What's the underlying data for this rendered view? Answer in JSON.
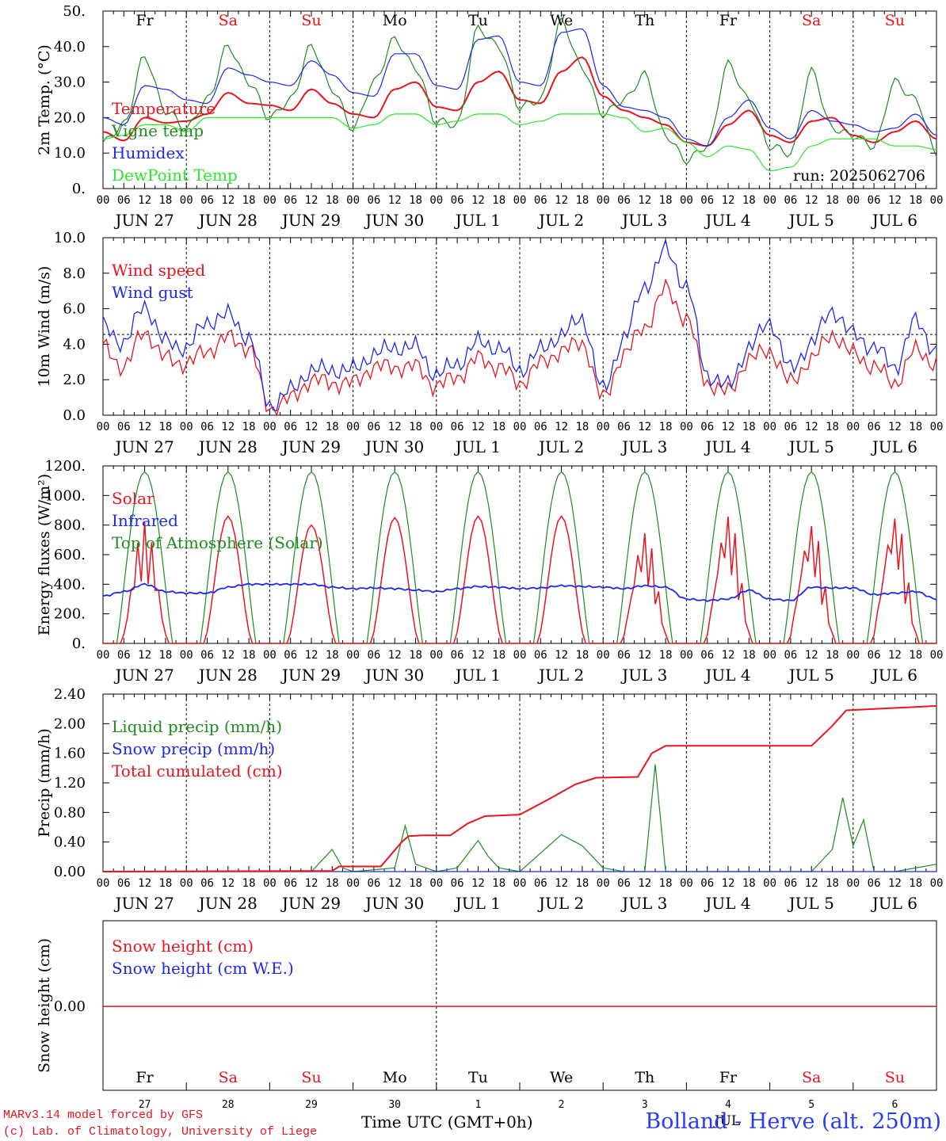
{
  "colors": {
    "temperature": "#e8141e",
    "vigne": "#1e8c1e",
    "humidex": "#1e28f0",
    "dewpoint": "#2ce82c",
    "weekday": "#000000",
    "weekend": "#e8141e",
    "station": "#2a3cf0"
  },
  "days": {
    "weekday_labels": [
      "Fr",
      "Sa",
      "Su",
      "Mo",
      "Tu",
      "We",
      "Th",
      "Fr",
      "Sa",
      "Su"
    ],
    "weekend_flags": [
      false,
      true,
      true,
      false,
      false,
      false,
      false,
      false,
      true,
      true
    ],
    "date_labels": [
      "JUN 27",
      "JUN 28",
      "JUN 29",
      "JUN 30",
      "JUL  1",
      "JUL  2",
      "JUL  3",
      "JUL  4",
      "JUL  5",
      "JUL  6"
    ],
    "day_numbers": [
      "27",
      "28",
      "29",
      "30",
      "1",
      "2",
      "3",
      "4",
      "5",
      "6"
    ],
    "hour_ticks": [
      "00",
      "06",
      "12",
      "18"
    ],
    "end_hour": "00"
  },
  "footer": {
    "credit_line1": "MARv3.14 model forced by GFS",
    "credit_line2": "(c) Lab. of Climatology, University of Liege",
    "xlabel": "Time UTC (GMT+0h)",
    "station": "Bolland - Herve (alt. 250m)",
    "month_label": "JUL"
  },
  "chart_data": [
    {
      "type": "line",
      "ylabel": "2m Temp. (°C)",
      "ylim": [
        0,
        50
      ],
      "yticks": [
        "0.",
        "10.0",
        "20.0",
        "30.0",
        "40.0",
        "50."
      ],
      "annotation": "run: 2025062706",
      "x_unit": "hours from JUN 27 00 UTC",
      "series": [
        {
          "name": "Temperature",
          "color": "#e8141e",
          "x": [
            0,
            6,
            12,
            18,
            24,
            30,
            36,
            42,
            48,
            54,
            60,
            66,
            72,
            78,
            84,
            90,
            96,
            102,
            108,
            114,
            120,
            126,
            132,
            138,
            144,
            150,
            156,
            162,
            168,
            174,
            180,
            186,
            192,
            198,
            204,
            210,
            216,
            222,
            228,
            234,
            240
          ],
          "values": [
            16,
            13.5,
            20,
            18.5,
            19,
            21,
            27,
            24,
            23.5,
            22,
            28,
            24,
            21,
            20,
            28,
            30,
            23,
            22,
            30,
            33,
            25,
            24,
            33,
            37,
            26,
            22,
            20,
            18,
            13,
            12,
            18,
            22,
            15,
            13,
            19,
            20,
            15,
            13,
            16,
            19,
            14
          ]
        },
        {
          "name": "Vigne temp",
          "color": "#1e8c1e",
          "x": [
            0,
            6,
            12,
            18,
            24,
            30,
            36,
            42,
            48,
            54,
            60,
            66,
            72,
            78,
            84,
            90,
            96,
            102,
            108,
            114,
            120,
            126,
            132,
            138,
            144,
            150,
            156,
            162,
            168,
            174,
            180,
            186,
            192,
            198,
            204,
            210,
            216,
            222,
            228,
            234,
            240
          ],
          "values": [
            13,
            18,
            37,
            22,
            17,
            25,
            40,
            30,
            20,
            25,
            40,
            28,
            17,
            30,
            42,
            34,
            19,
            18,
            45,
            40,
            23,
            25,
            47,
            34,
            21,
            25,
            32,
            15,
            8,
            12,
            35,
            25,
            12,
            10,
            33,
            17,
            15,
            12,
            30,
            25,
            10
          ]
        },
        {
          "name": "Humidex",
          "color": "#1e28f0",
          "x": [
            0,
            6,
            12,
            18,
            24,
            30,
            36,
            42,
            48,
            54,
            60,
            66,
            72,
            78,
            84,
            90,
            96,
            102,
            108,
            114,
            120,
            126,
            132,
            138,
            144,
            150,
            156,
            162,
            168,
            174,
            180,
            186,
            192,
            198,
            204,
            210,
            216,
            222,
            228,
            234,
            240
          ],
          "values": [
            20,
            18,
            29,
            28,
            25,
            24,
            34,
            32,
            30,
            29,
            36,
            32,
            27,
            26,
            38,
            38,
            29,
            28,
            42,
            43,
            30,
            29,
            44,
            45,
            29,
            23,
            22,
            20,
            14,
            12,
            20,
            25,
            17,
            14,
            22,
            19,
            18,
            16,
            17,
            21,
            15
          ]
        },
        {
          "name": "DewPoint Temp",
          "color": "#2ce82c",
          "x": [
            0,
            6,
            12,
            18,
            24,
            30,
            36,
            42,
            48,
            54,
            60,
            66,
            72,
            78,
            84,
            90,
            96,
            102,
            108,
            114,
            120,
            126,
            132,
            138,
            144,
            150,
            156,
            162,
            168,
            174,
            180,
            186,
            192,
            198,
            204,
            210,
            216,
            222,
            228,
            234,
            240
          ],
          "values": [
            14,
            15,
            18,
            18,
            16,
            20,
            20,
            20,
            20,
            20,
            20,
            20,
            17,
            18,
            21,
            21,
            18,
            19,
            21,
            21,
            18,
            19,
            21,
            21,
            21,
            20,
            16,
            17,
            13,
            9,
            12,
            11,
            5,
            6,
            12,
            14,
            14,
            14,
            12,
            12,
            11
          ]
        }
      ]
    },
    {
      "type": "line",
      "ylabel": "10m Wind (m/s)",
      "ylim": [
        0,
        11
      ],
      "yticks": [
        "0.0",
        "2.0",
        "4.0",
        "6.0",
        "8.0",
        "10.0"
      ],
      "ref_line": 5,
      "x_unit": "hours from JUN 27 00 UTC",
      "series": [
        {
          "name": "Wind speed",
          "color": "#e8141e",
          "x": [
            0,
            6,
            12,
            18,
            24,
            30,
            36,
            42,
            48,
            54,
            60,
            66,
            72,
            78,
            84,
            90,
            96,
            102,
            108,
            114,
            120,
            126,
            132,
            138,
            144,
            150,
            156,
            162,
            168,
            174,
            180,
            186,
            192,
            198,
            204,
            210,
            216,
            222,
            228,
            234,
            240
          ],
          "values": [
            4.2,
            3.0,
            5.2,
            3.5,
            3.2,
            4.0,
            4.8,
            4.2,
            0.4,
            1.0,
            2.2,
            2.0,
            2.0,
            3.0,
            3.0,
            3.0,
            1.8,
            2.4,
            3.5,
            3.0,
            2.0,
            3.2,
            4.0,
            4.5,
            1.0,
            3.8,
            5.5,
            7.8,
            6.0,
            2.0,
            1.4,
            3.5,
            4.0,
            2.0,
            3.5,
            5.0,
            3.8,
            3.0,
            2.0,
            4.0,
            3.2
          ]
        },
        {
          "name": "Wind gust",
          "color": "#1e28f0",
          "x": [
            0,
            6,
            12,
            18,
            24,
            30,
            36,
            42,
            48,
            54,
            60,
            66,
            72,
            78,
            84,
            90,
            96,
            102,
            108,
            114,
            120,
            126,
            132,
            138,
            144,
            150,
            156,
            162,
            168,
            174,
            180,
            186,
            192,
            198,
            204,
            210,
            216,
            222,
            228,
            234,
            240
          ],
          "values": [
            5.5,
            4.5,
            6.8,
            4.5,
            4.2,
            5.8,
            6.2,
            4.8,
            0.6,
            1.5,
            2.8,
            2.8,
            2.8,
            3.8,
            4.2,
            4.2,
            2.5,
            3.2,
            4.5,
            4.2,
            2.8,
            4.0,
            5.0,
            6.0,
            1.5,
            4.8,
            8.0,
            10.2,
            8.0,
            2.5,
            1.8,
            4.2,
            5.8,
            2.8,
            4.5,
            6.5,
            5.0,
            4.2,
            3.0,
            5.8,
            4.0
          ]
        }
      ]
    },
    {
      "type": "line",
      "ylabel": "Energy fluxes (W/m²)",
      "ylim": [
        0,
        1200
      ],
      "yticks": [
        "0.",
        "200.",
        "400.",
        "600.",
        "800.",
        "1000.",
        "1200."
      ],
      "x_unit": "hours from JUN 27 00 UTC",
      "solar_peaks": [
        820,
        860,
        800,
        850,
        860,
        860,
        760,
        880,
        820,
        880
      ],
      "series": [
        {
          "name": "Solar",
          "color": "#e8141e"
        },
        {
          "name": "Infrared",
          "color": "#1e28f0",
          "x": [
            0,
            6,
            12,
            18,
            24,
            30,
            36,
            42,
            48,
            54,
            60,
            66,
            72,
            78,
            84,
            90,
            96,
            102,
            108,
            114,
            120,
            126,
            132,
            138,
            144,
            150,
            156,
            162,
            168,
            174,
            180,
            186,
            192,
            198,
            204,
            210,
            216,
            222,
            228,
            234,
            240
          ],
          "values": [
            320,
            350,
            400,
            350,
            340,
            340,
            380,
            400,
            400,
            400,
            400,
            380,
            370,
            375,
            370,
            360,
            350,
            370,
            385,
            380,
            370,
            375,
            390,
            385,
            380,
            370,
            390,
            380,
            300,
            290,
            300,
            360,
            300,
            290,
            380,
            375,
            375,
            330,
            340,
            350,
            300
          ]
        },
        {
          "name": "Top of Atmosphere (Solar)",
          "color": "#1e8c1e",
          "peak": 1160
        }
      ]
    },
    {
      "type": "line",
      "ylabel": "Precip (mm/h)",
      "ylim": [
        0,
        2.4
      ],
      "yticks": [
        "0.00",
        "0.40",
        "0.80",
        "1.20",
        "1.60",
        "2.00",
        "2.40"
      ],
      "x_unit": "hours from JUN 27 00 UTC",
      "series": [
        {
          "name": "Liquid precip (mm/h)",
          "color": "#1e8c1e",
          "x": [
            0,
            60,
            66,
            69,
            72,
            84,
            87,
            90,
            96,
            102,
            108,
            111,
            114,
            120,
            132,
            138,
            141,
            144,
            150,
            156,
            159,
            162,
            204,
            210,
            213,
            216,
            219,
            222,
            228,
            240
          ],
          "values": [
            0,
            0,
            0.3,
            0.05,
            0,
            0.05,
            0.62,
            0.1,
            0,
            0.05,
            0.42,
            0.2,
            0.05,
            0,
            0.5,
            0.35,
            0.2,
            0.05,
            0,
            0,
            1.45,
            0,
            0,
            0.3,
            1.0,
            0.35,
            0.7,
            0,
            0,
            0.1
          ]
        },
        {
          "name": "Snow precip (mm/h)",
          "color": "#1e28f0",
          "x": [
            0,
            240
          ],
          "values": [
            0,
            0
          ]
        },
        {
          "name": "Total cumulated (cm)",
          "color": "#e8141e",
          "x": [
            0,
            66,
            68,
            80,
            86,
            88,
            92,
            100,
            105,
            110,
            120,
            128,
            136,
            142,
            154,
            158,
            162,
            204,
            210,
            214,
            240
          ],
          "values": [
            0,
            0.01,
            0.07,
            0.07,
            0.4,
            0.48,
            0.49,
            0.49,
            0.65,
            0.75,
            0.77,
            0.97,
            1.18,
            1.27,
            1.28,
            1.6,
            1.7,
            1.7,
            1.97,
            2.18,
            2.24
          ]
        }
      ]
    },
    {
      "type": "line",
      "ylabel": "Snow height (cm)",
      "yticks": [
        "0.00"
      ],
      "x_unit": "hours from JUN 27 00 UTC",
      "series": [
        {
          "name": "Snow height (cm)",
          "color": "#e8141e",
          "x": [
            0,
            240
          ],
          "values": [
            0,
            0
          ]
        },
        {
          "name": "Snow height (cm W.E.)",
          "color": "#1e28f0",
          "x": [
            0,
            240
          ],
          "values": [
            0,
            0
          ]
        }
      ]
    }
  ]
}
